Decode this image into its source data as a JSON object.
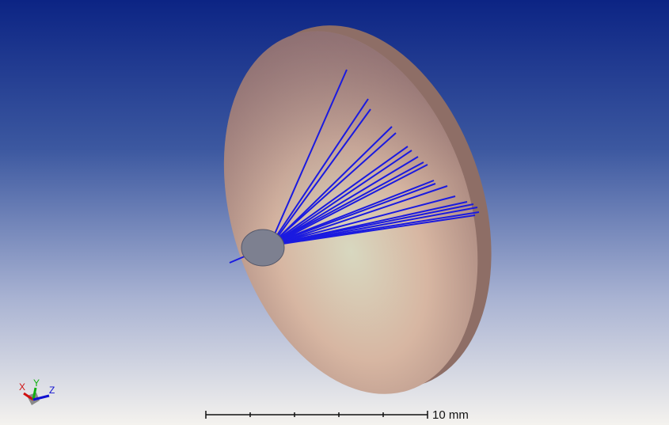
{
  "axes": {
    "x": "X",
    "y": "Y",
    "z": "Z"
  },
  "scale_bar": {
    "label": "10 mm"
  }
}
